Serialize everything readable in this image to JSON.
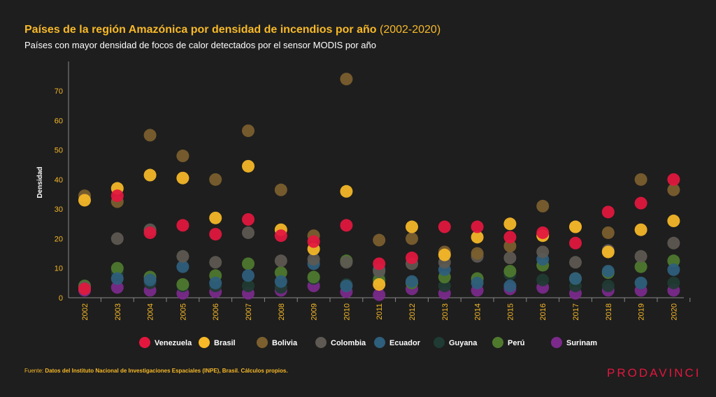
{
  "header": {
    "title": "Países de la región Amazónica por densidad de incendios por año",
    "title_years": "(2002-2020)",
    "subtitle": "Países con mayor densidad de focos de calor detectados por el sensor MODIS por año"
  },
  "footer": {
    "source_label": "Fuente:",
    "source_text": "Datos del Instituto Nacional de Investigaciones Espaciales (INPE), Brasil. Cálculos propios.",
    "brand": "PRODAVINCI"
  },
  "chart_data": {
    "type": "scatter",
    "ylabel": "Densidad",
    "ylim": [
      0,
      75
    ],
    "yticks": [
      0,
      10,
      20,
      30,
      40,
      50,
      60,
      70
    ],
    "x": [
      "2002",
      "2003",
      "2004",
      "2005",
      "2006",
      "2007",
      "2008",
      "2009",
      "2010",
      "2011",
      "2012",
      "2013",
      "2014",
      "2015",
      "2016",
      "2017",
      "2018",
      "2019",
      "2020"
    ],
    "grid": false,
    "legend_position": "bottom",
    "series": [
      {
        "name": "Surinam",
        "color": "#7b2a8c",
        "values": [
          2.5,
          3.5,
          2.5,
          1.5,
          2,
          1.5,
          2.5,
          4,
          2,
          1,
          3,
          1.5,
          2.5,
          3,
          3.5,
          1.5,
          2.5,
          2.5,
          2.5
        ]
      },
      {
        "name": "Guyana",
        "color": "#1f3b33",
        "values": [
          4,
          8.5,
          5,
          4,
          4,
          4,
          3.5,
          6.5,
          4.5,
          7.5,
          5,
          4,
          6,
          8,
          6,
          4,
          4,
          5,
          5
        ]
      },
      {
        "name": "Perú",
        "color": "#4f7a2e",
        "values": [
          4,
          10,
          7,
          4.5,
          7.5,
          11.5,
          8.5,
          7,
          12.5,
          6,
          5,
          7,
          6.5,
          9,
          11,
          6.5,
          8.5,
          10.5,
          12.5
        ]
      },
      {
        "name": "Ecuador",
        "color": "#2e5f7d",
        "values": [
          3,
          6.5,
          6,
          10.5,
          5,
          7.5,
          5.5,
          11.5,
          4,
          9.5,
          5.5,
          9.5,
          5,
          4,
          13,
          6.5,
          9,
          5,
          9.5
        ]
      },
      {
        "name": "Colombia",
        "color": "#5e5952",
        "values": [
          3.5,
          20,
          23,
          14,
          12,
          22,
          12.5,
          13,
          12,
          9,
          11.5,
          12,
          14,
          13.5,
          15.5,
          12,
          16,
          14,
          18.5
        ]
      },
      {
        "name": "Bolivia",
        "color": "#7c5f2e",
        "values": [
          34.5,
          32.5,
          55,
          48,
          40,
          56.5,
          36.5,
          21,
          74,
          19.5,
          20,
          15.5,
          15,
          17.5,
          31,
          24,
          22,
          40,
          36.5
        ]
      },
      {
        "name": "Brasil",
        "color": "#f7b928",
        "values": [
          33,
          37,
          41.5,
          40.5,
          27,
          44.5,
          23,
          16.5,
          36,
          4.5,
          24,
          14.5,
          20.5,
          25,
          21,
          24,
          15.5,
          23,
          26
        ]
      },
      {
        "name": "Venezuela",
        "color": "#e3173e",
        "values": [
          3,
          34.5,
          22,
          24.5,
          21.5,
          26.5,
          21,
          19,
          24.5,
          11.5,
          13.5,
          24,
          24,
          20.5,
          22,
          18.5,
          29,
          32,
          40
        ]
      }
    ],
    "legend_order": [
      "Venezuela",
      "Brasil",
      "Bolivia",
      "Colombia",
      "Ecuador",
      "Guyana",
      "Perú",
      "Surinam"
    ]
  }
}
